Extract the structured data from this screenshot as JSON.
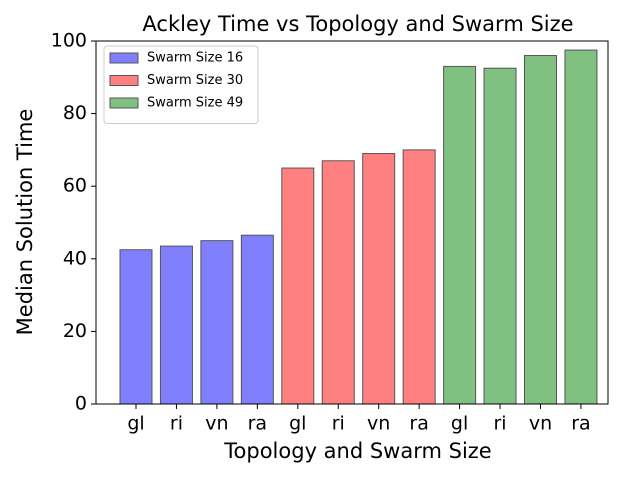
{
  "chart_data": {
    "type": "bar",
    "title": "Ackley Time vs Topology and Swarm Size",
    "x_label": "Topology and Swarm Size",
    "y_label": "Median Solution Time",
    "categories": [
      "gl",
      "ri",
      "vn",
      "ra",
      "gl",
      "ri",
      "vn",
      "ra",
      "gl",
      "ri",
      "vn",
      "ra"
    ],
    "series": [
      {
        "name": "Swarm Size 16",
        "color": "#8080ff",
        "values": [
          42.5,
          43.5,
          45,
          46.5,
          null,
          null,
          null,
          null,
          null,
          null,
          null,
          null
        ]
      },
      {
        "name": "Swarm Size 30",
        "color": "#ff8080",
        "values": [
          null,
          null,
          null,
          null,
          65,
          67,
          69,
          70,
          null,
          null,
          null,
          null
        ]
      },
      {
        "name": "Swarm Size 49",
        "color": "#80c080",
        "values": [
          null,
          null,
          null,
          null,
          null,
          null,
          null,
          null,
          93,
          92.5,
          96,
          97.5
        ]
      }
    ],
    "ylim": [
      0,
      100
    ],
    "yticks": [
      0,
      20,
      40,
      60,
      80,
      100
    ],
    "legend": "upper left",
    "grid": false
  }
}
